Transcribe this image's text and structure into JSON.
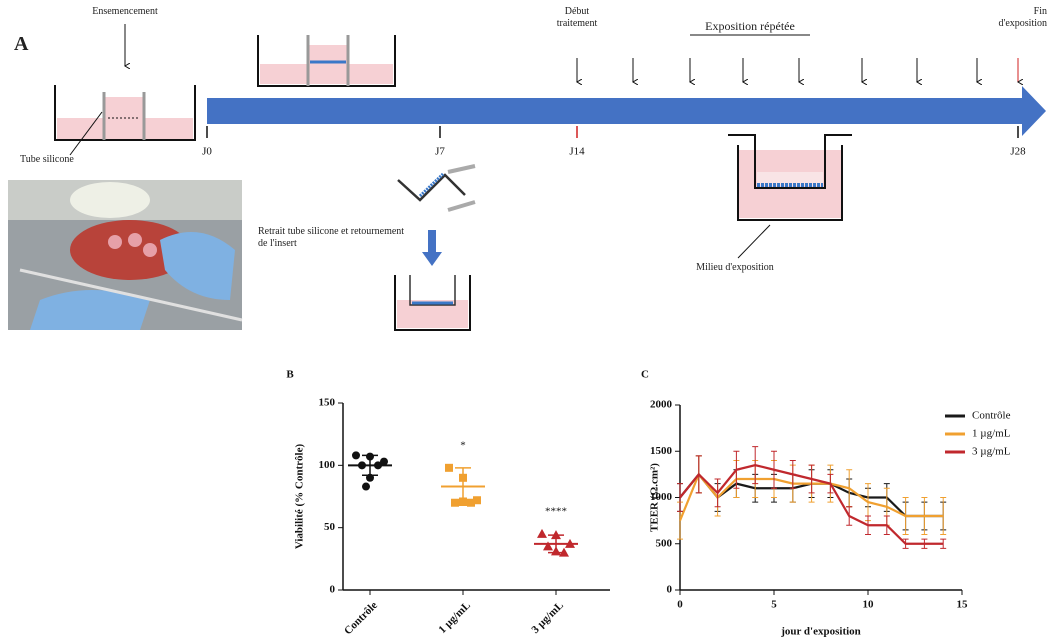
{
  "panel_a": {
    "label": "A",
    "seeding": "Ensemencement",
    "silicone_tube": "Tube silicone",
    "days": [
      "J0",
      "J7",
      "J14",
      "J28"
    ],
    "treatment_start": "Début traitement",
    "repeated_exposure": "Exposition répétée",
    "exposure_end": "Fin d'exposition",
    "insert_step": "Retrait tube silicone et retournement de l'insert",
    "exposure_medium": "Milieu d'exposition"
  },
  "chart_data": [
    {
      "type": "dot",
      "panel": "B",
      "y_label": "Viabilité (% Contrôle)",
      "ylim": [
        0,
        150
      ],
      "yticks": [
        0,
        50,
        100,
        150
      ],
      "groups": [
        {
          "label": "Contrôle",
          "color": "#111111",
          "values": [
            108,
            107,
            103,
            100,
            100,
            90,
            83
          ],
          "mean": 100,
          "sd": 8
        },
        {
          "label": "1 µg/mL",
          "color": "#f0a030",
          "values": [
            98,
            90,
            72,
            70,
            70,
            71
          ],
          "mean": 83,
          "sd": 15,
          "annotation": "*"
        },
        {
          "label": "3 µg/mL",
          "color": "#c0282d",
          "values": [
            45,
            44,
            37,
            35,
            30,
            31
          ],
          "mean": 37,
          "sd": 7,
          "annotation": "****"
        }
      ]
    },
    {
      "type": "line",
      "panel": "C",
      "x_label": "jour d'exposition",
      "y_label": "TEER (Ω.cm²)",
      "xlim": [
        0,
        15
      ],
      "xticks": [
        0,
        5,
        10,
        15
      ],
      "ylim": [
        0,
        2000
      ],
      "yticks": [
        0,
        500,
        1000,
        1500,
        2000
      ],
      "x": [
        0,
        1,
        2,
        3,
        4,
        5,
        6,
        7,
        8,
        9,
        10,
        11,
        12,
        13,
        14
      ],
      "series": [
        {
          "name": "Contrôle",
          "color": "#1a1a1a",
          "values": [
            1000,
            1250,
            1000,
            1150,
            1100,
            1100,
            1100,
            1150,
            1150,
            1050,
            1000,
            1000,
            800,
            800,
            800
          ],
          "errors": [
            150,
            200,
            150,
            150,
            150,
            150,
            150,
            150,
            150,
            150,
            100,
            150,
            150,
            150,
            150
          ]
        },
        {
          "name": "1 µg/mL",
          "color": "#f0a030",
          "values": [
            750,
            1250,
            1000,
            1200,
            1200,
            1200,
            1150,
            1150,
            1150,
            1100,
            950,
            900,
            800,
            800,
            800
          ],
          "errors": [
            200,
            200,
            200,
            200,
            200,
            200,
            200,
            200,
            200,
            200,
            200,
            200,
            200,
            200,
            200
          ]
        },
        {
          "name": "3 µg/mL",
          "color": "#c0282d",
          "values": [
            1000,
            1250,
            1050,
            1300,
            1350,
            1300,
            1250,
            1200,
            1150,
            800,
            700,
            700,
            500,
            500,
            500
          ],
          "errors": [
            150,
            200,
            150,
            200,
            200,
            200,
            150,
            150,
            100,
            100,
            100,
            100,
            50,
            50,
            50
          ]
        }
      ]
    }
  ]
}
